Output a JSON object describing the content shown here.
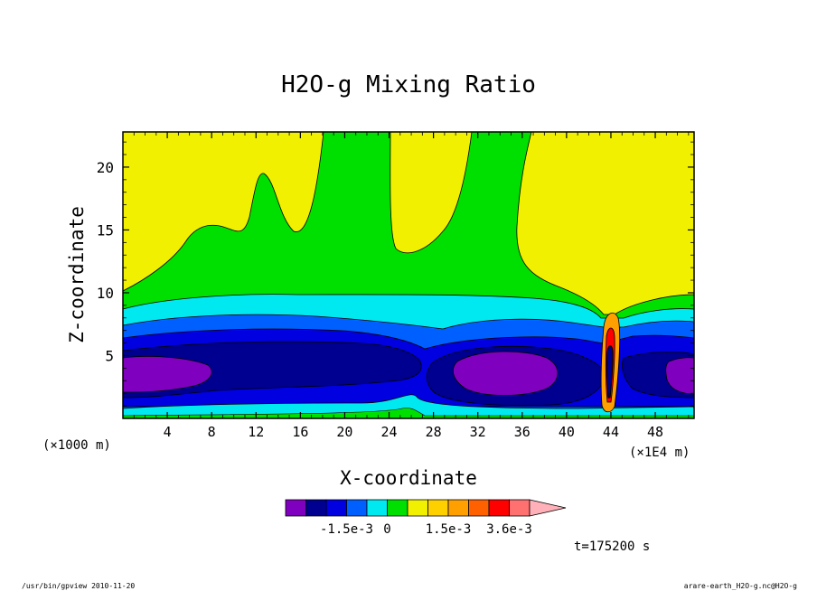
{
  "chart_data": {
    "type": "heatmap",
    "title": "H2O-g Mixing Ratio",
    "xlabel": "X-coordinate",
    "ylabel": "Z-coordinate",
    "x_unit": "(×1000 m)",
    "x_multiplier": "(×1E4 m)",
    "xlim": [
      0,
      51.5
    ],
    "ylim": [
      0,
      22.8
    ],
    "x_ticks": [
      4,
      8,
      12,
      16,
      20,
      24,
      28,
      32,
      36,
      40,
      44,
      48
    ],
    "y_ticks": [
      5,
      10,
      15,
      20
    ],
    "grid": false,
    "time_label": "t=175200 s",
    "footer_left": "/usr/bin/gpview  2010-11-20",
    "footer_right": "arare-earth_H2O-g.nc@H2O-g",
    "colorbar": {
      "colors": [
        "#7f00bf",
        "#000090",
        "#0000e0",
        "#0060ff",
        "#00e8f0",
        "#00e000",
        "#f0f000",
        "#ffd000",
        "#ffa000",
        "#ff6000",
        "#ff0000",
        "#ff7070"
      ],
      "extend_color": "#ffb0b8",
      "labels": [
        {
          "text": "-1.5e-3",
          "index": 3
        },
        {
          "text": "0",
          "index": 5
        },
        {
          "text": "1.5e-3",
          "index": 8
        },
        {
          "text": "3.6e-3",
          "index": 11
        }
      ]
    }
  }
}
